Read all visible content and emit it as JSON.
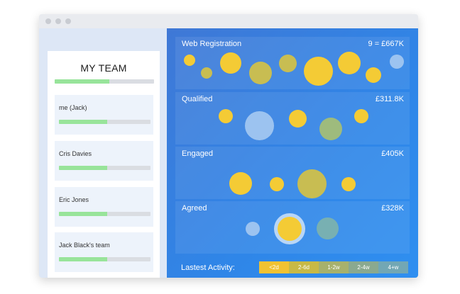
{
  "team": {
    "title": "MY TEAM",
    "overall_progress": 0.55,
    "members": [
      {
        "name": "me (Jack)",
        "progress": 0.53
      },
      {
        "name": "Cris Davies",
        "progress": 0.53
      },
      {
        "name": "Eric Jones",
        "progress": 0.53
      },
      {
        "name": "Jack Black's team",
        "progress": 0.53
      }
    ]
  },
  "pipeline": {
    "stages": [
      {
        "name": "Web Registration",
        "value": "9 = £667K"
      },
      {
        "name": "Qualified",
        "value": "£311.8K"
      },
      {
        "name": "Engaged",
        "value": "£405K"
      },
      {
        "name": "Agreed",
        "value": "£328K"
      }
    ]
  },
  "legend": {
    "label": "Lastest Activity:",
    "items": [
      {
        "label": "<2d",
        "color": "#f1c232"
      },
      {
        "label": "2-6d",
        "color": "#c8b945"
      },
      {
        "label": "1-2w",
        "color": "#a7b16c"
      },
      {
        "label": "2-4w",
        "color": "#8aa98f"
      },
      {
        "label": "4+w",
        "color": "#72a7b4"
      }
    ]
  },
  "colors": {
    "yellow": "#f4cb35",
    "olive": "#c8bd52",
    "sage": "#9ebb7d",
    "teal": "#78b0b2",
    "lightblue": "#9cc3f0",
    "progress_fill": "#98e49a"
  }
}
